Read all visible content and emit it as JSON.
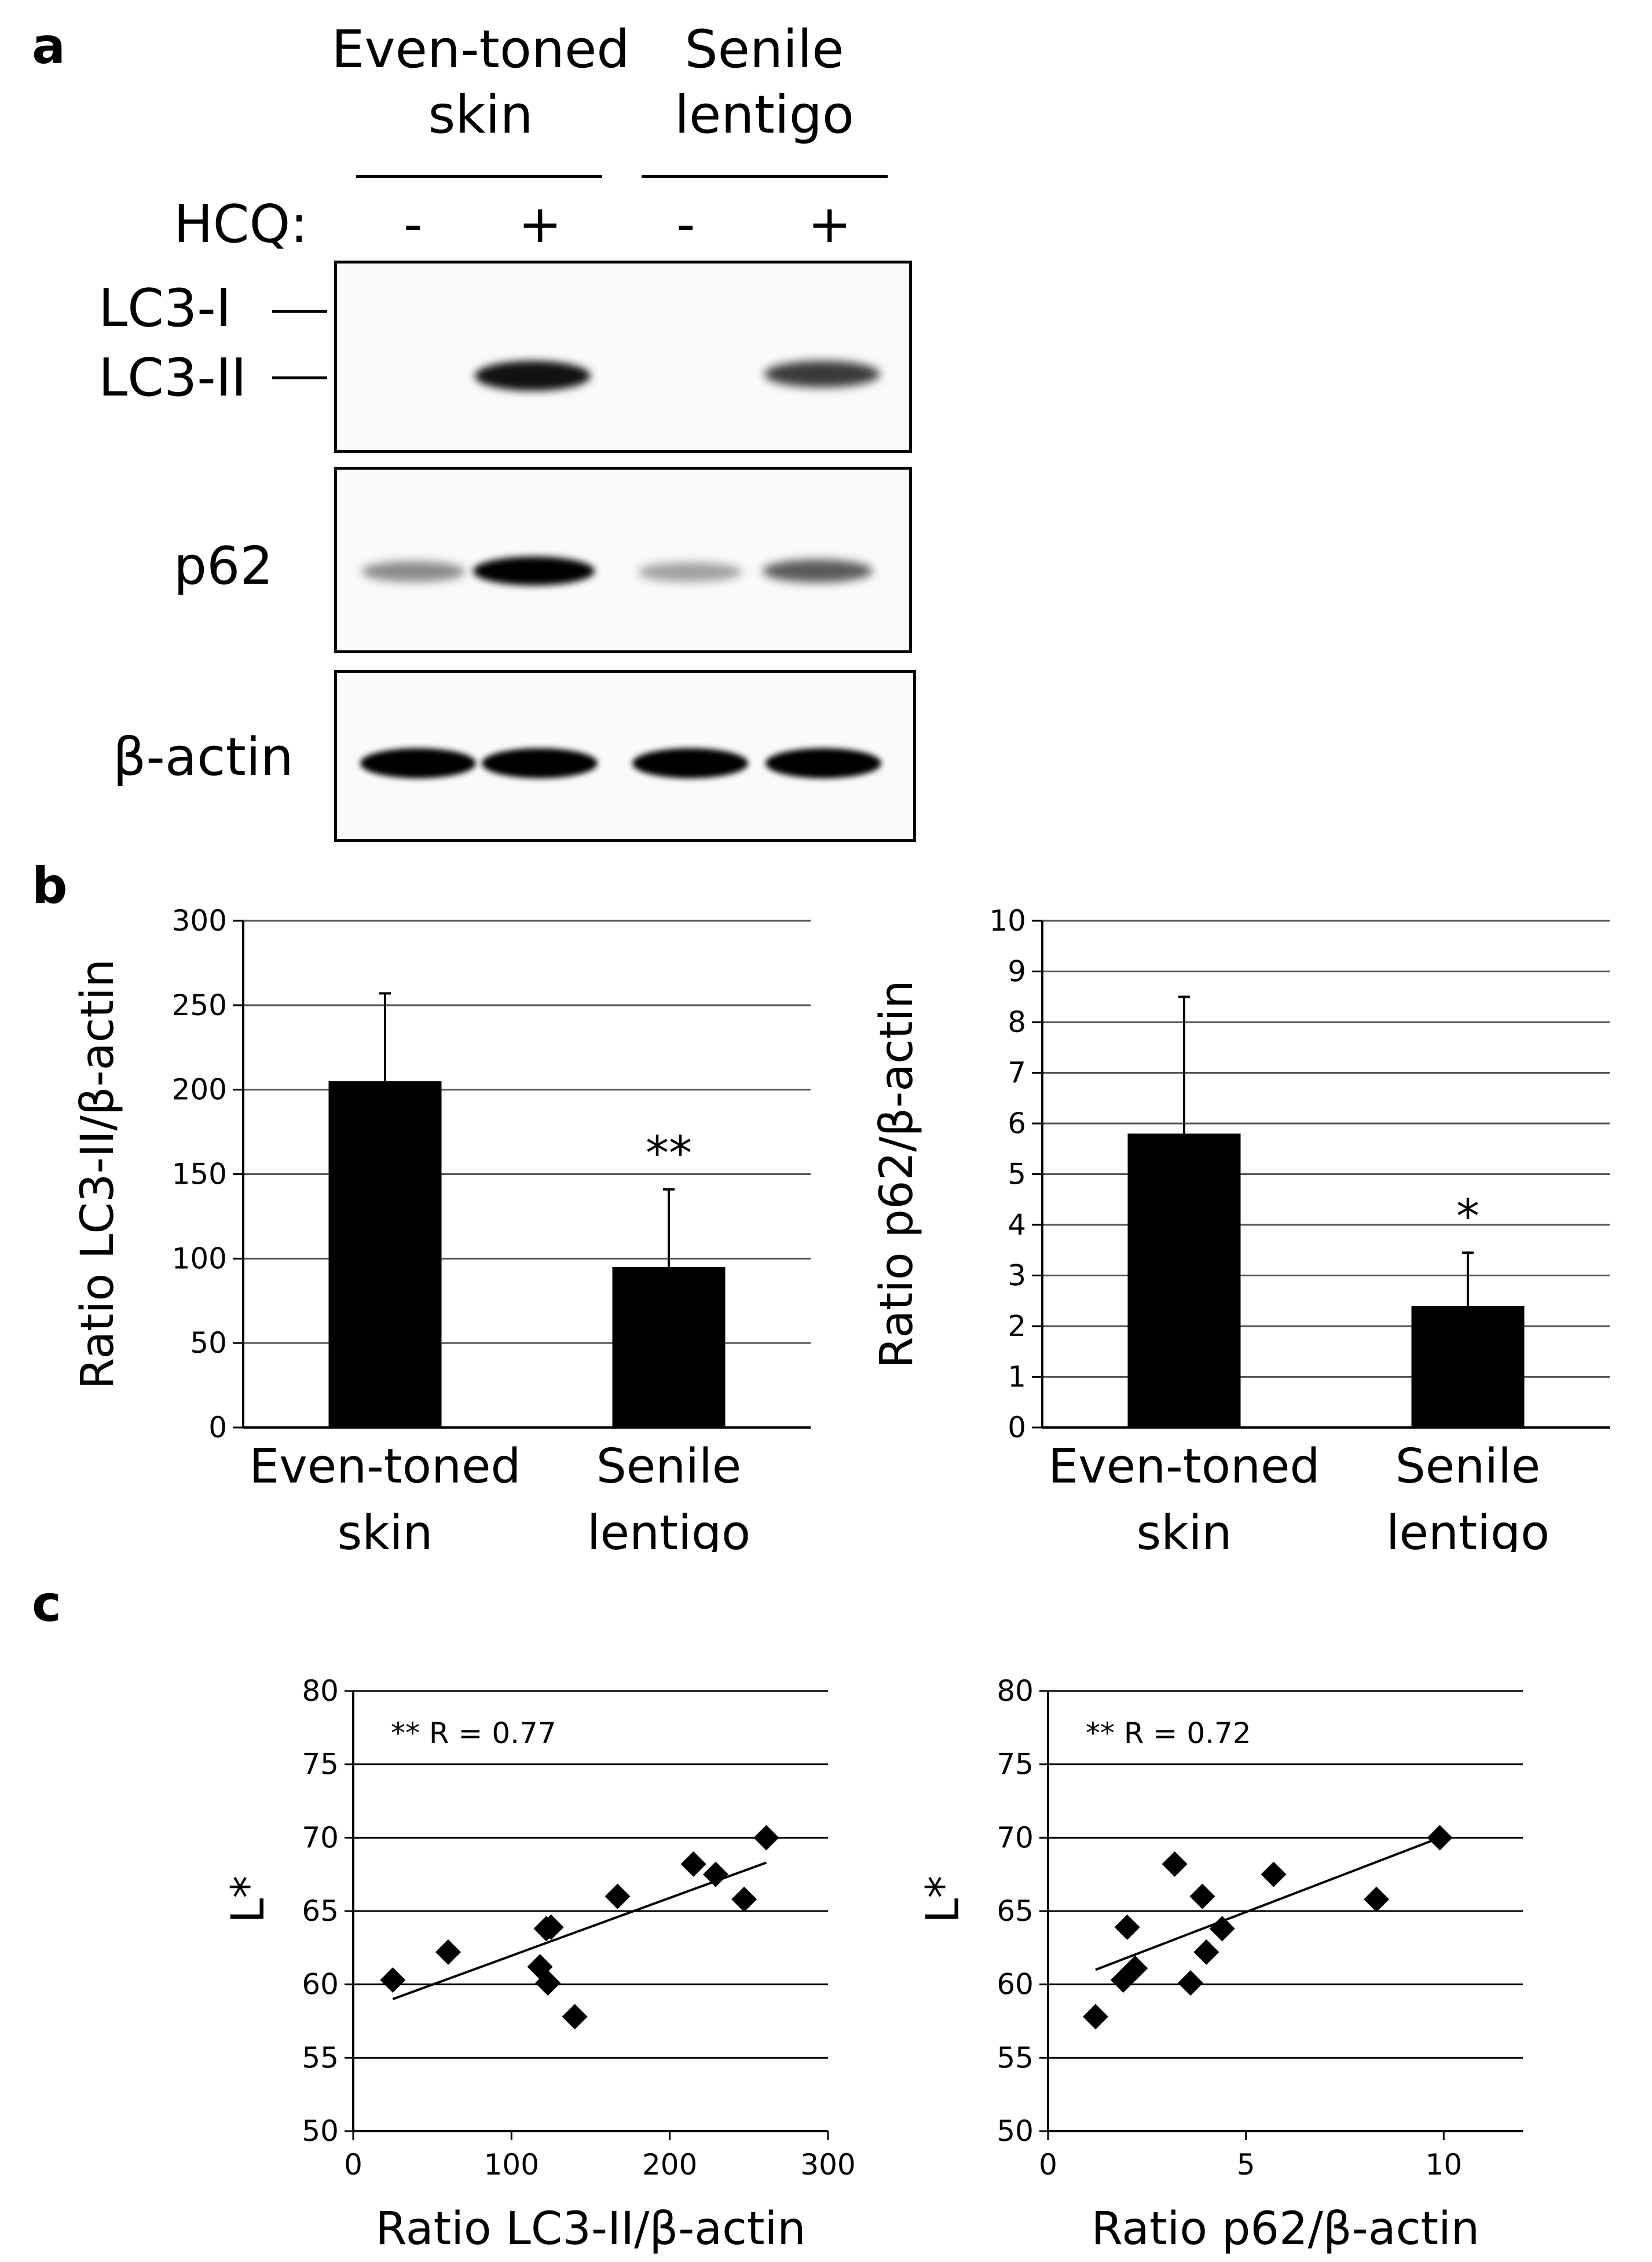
{
  "panel_a": {
    "letter": "a",
    "group1_line1": "Even-toned",
    "group1_line2": "skin",
    "group2_line1": "Senile",
    "group2_line2": "lentigo",
    "hcq_label": "HCQ:",
    "lane_signs": [
      "-",
      "+",
      "-",
      "+"
    ],
    "lc3_i_label": "LC3-I",
    "lc3_ii_label": "LC3-II",
    "p62_label": "p62",
    "actin_label": "β-actin"
  },
  "panel_b": {
    "letter": "b"
  },
  "panel_c": {
    "letter": "c"
  },
  "chart_data": [
    {
      "type": "bar",
      "categories": [
        "Even-toned skin",
        "Senile lentigo"
      ],
      "category_lines": [
        [
          "Even-toned",
          "skin"
        ],
        [
          "Senile",
          "lentigo"
        ]
      ],
      "values": [
        205,
        95
      ],
      "errors": [
        52,
        46
      ],
      "significance": [
        "",
        "**"
      ],
      "ylabel": "Ratio LC3-II/β-actin",
      "ylim": [
        0,
        300
      ],
      "yticks": [
        0,
        50,
        100,
        150,
        200,
        250,
        300
      ],
      "grid": true,
      "bar_color": "#000000"
    },
    {
      "type": "bar",
      "categories": [
        "Even-toned skin",
        "Senile lentigo"
      ],
      "category_lines": [
        [
          "Even-toned",
          "skin"
        ],
        [
          "Senile",
          "lentigo"
        ]
      ],
      "values": [
        5.8,
        2.4
      ],
      "errors": [
        2.7,
        1.05
      ],
      "significance": [
        "",
        "*"
      ],
      "ylabel": "Ratio p62/β-actin",
      "ylim": [
        0,
        10
      ],
      "yticks": [
        0,
        1,
        2,
        3,
        4,
        5,
        6,
        7,
        8,
        9,
        10
      ],
      "grid": true,
      "bar_color": "#000000"
    },
    {
      "type": "scatter",
      "x": [
        25,
        60,
        118,
        122,
        123,
        125,
        140,
        167,
        215,
        229,
        247,
        261
      ],
      "y": [
        60.3,
        62.2,
        61.2,
        63.8,
        60.1,
        63.9,
        57.8,
        66.0,
        68.2,
        67.5,
        65.8,
        70.0
      ],
      "trendline": {
        "x": [
          25,
          261
        ],
        "y": [
          59.0,
          68.3
        ]
      },
      "annotation": "** R = 0.77",
      "xlabel": "Ratio LC3-II/β-actin",
      "ylabel": "L*",
      "xlim": [
        0,
        300
      ],
      "ylim": [
        50,
        80
      ],
      "xticks": [
        0,
        100,
        200,
        300
      ],
      "yticks": [
        50,
        55,
        60,
        65,
        70,
        75,
        80
      ],
      "grid": true
    },
    {
      "type": "scatter",
      "x": [
        1.2,
        1.9,
        2.0,
        2.2,
        3.2,
        3.6,
        3.9,
        4.0,
        4.4,
        5.7,
        8.3,
        9.9
      ],
      "y": [
        57.8,
        60.3,
        63.9,
        61.1,
        68.2,
        60.1,
        66.0,
        62.2,
        63.8,
        67.5,
        65.8,
        70.0
      ],
      "trendline": {
        "x": [
          1.2,
          9.9
        ],
        "y": [
          61.0,
          70.0
        ]
      },
      "annotation": "** R = 0.72",
      "xlabel": "Ratio p62/β-actin",
      "ylabel": "L*",
      "xlim": [
        0,
        12
      ],
      "ylim": [
        50,
        80
      ],
      "xticks": [
        0,
        5,
        10
      ],
      "yticks": [
        50,
        55,
        60,
        65,
        70,
        75,
        80
      ],
      "grid": true
    }
  ]
}
